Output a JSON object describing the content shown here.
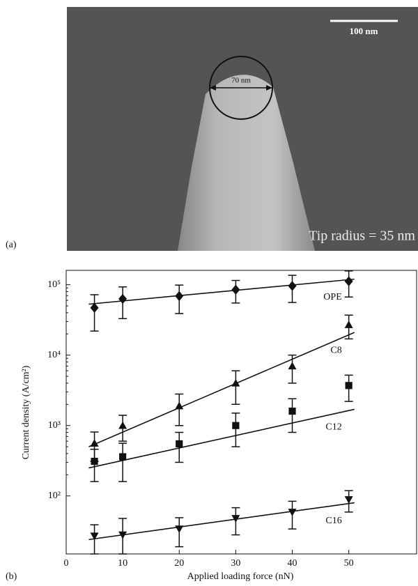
{
  "panel_a": {
    "label": "(a)",
    "scale_bar": "100 nm",
    "diameter": "70 nm",
    "caption": "Tip radius = 35 nm"
  },
  "chart_data": {
    "type": "scatter",
    "panel_label": "(b)",
    "xlabel": "Applied loading force (nN)",
    "ylabel": "Current density (A/cm²)",
    "xlim": [
      0,
      62
    ],
    "xticks": [
      0,
      10,
      20,
      30,
      40,
      50
    ],
    "ylim": [
      15,
      160000
    ],
    "log_y": true,
    "yticks": [
      {
        "value": 100,
        "label": "10²"
      },
      {
        "value": 1000,
        "label": "10³"
      },
      {
        "value": 10000,
        "label": "10⁴"
      },
      {
        "value": 100000,
        "label": "10⁵"
      }
    ],
    "x": [
      5,
      10,
      20,
      30,
      40,
      50
    ],
    "fit_x": [
      4,
      51
    ],
    "series": [
      {
        "name": "OPE",
        "marker": "diamond",
        "color": "#111111",
        "values": [
          47000,
          63000,
          69000,
          85000,
          96000,
          112000
        ],
        "errors": [
          25000,
          30000,
          30000,
          30000,
          40000,
          45000
        ],
        "fit_values": [
          53000,
          120000
        ]
      },
      {
        "name": "C8",
        "marker": "triangle-up",
        "color": "#111111",
        "values": [
          560,
          1000,
          1900,
          4000,
          7000,
          27000
        ],
        "errors": [
          250,
          400,
          900,
          2000,
          3000,
          10000
        ],
        "fit_values": [
          500,
          21000
        ]
      },
      {
        "name": "C12",
        "marker": "square",
        "color": "#111111",
        "values": [
          310,
          360,
          550,
          1000,
          1600,
          3700
        ],
        "errors": [
          150,
          200,
          250,
          500,
          800,
          1500
        ],
        "fit_values": [
          250,
          1700
        ]
      },
      {
        "name": "C16",
        "marker": "triangle-down",
        "color": "#111111",
        "values": [
          27,
          28,
          34,
          48,
          59,
          89
        ],
        "errors": [
          12,
          20,
          15,
          20,
          25,
          30
        ],
        "fit_values": [
          24,
          80
        ]
      }
    ]
  }
}
